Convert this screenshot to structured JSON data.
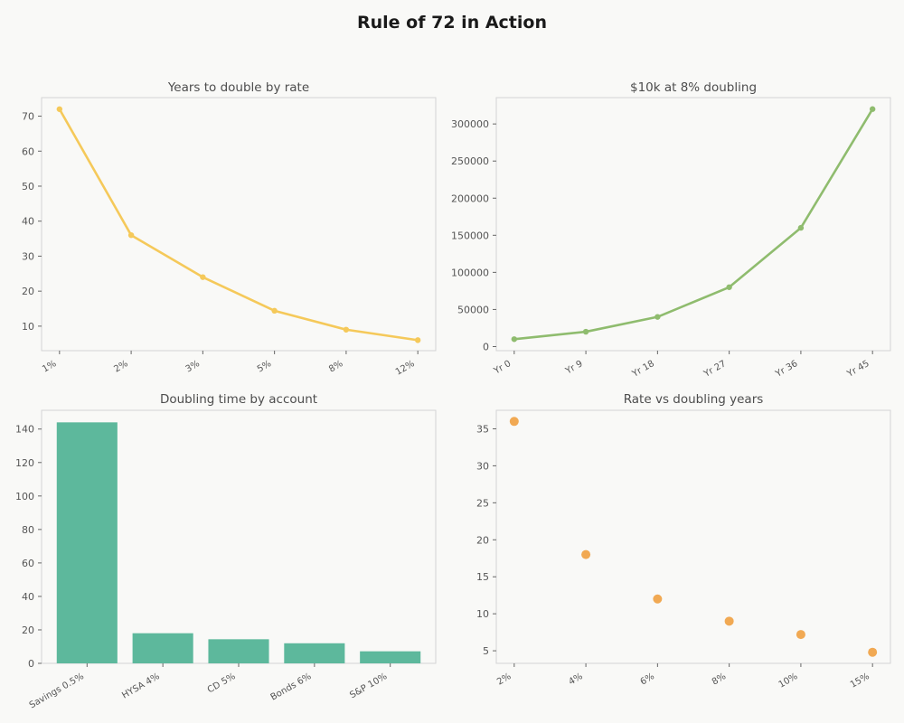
{
  "figure": {
    "title": "Rule of 72 in Action"
  },
  "chart_data": [
    {
      "type": "line",
      "title": "Years to double by rate",
      "xlabel": "",
      "ylabel": "",
      "categories": [
        "1%",
        "2%",
        "3%",
        "5%",
        "8%",
        "12%"
      ],
      "values": [
        72,
        36,
        24,
        14.4,
        9,
        6
      ],
      "ylim": [
        3,
        75.3
      ],
      "yticks": [
        10,
        20,
        30,
        40,
        50,
        60,
        70
      ],
      "color": "#f5c95a",
      "grid": false
    },
    {
      "type": "line",
      "title": "$10k at 8% doubling",
      "xlabel": "",
      "ylabel": "",
      "categories": [
        "Yr 0",
        "Yr 9",
        "Yr 18",
        "Yr 27",
        "Yr 36",
        "Yr 45"
      ],
      "values": [
        10000,
        20000,
        40000,
        80000,
        160000,
        320000
      ],
      "ylim": [
        -5500,
        335500
      ],
      "yticks": [
        0,
        50000,
        100000,
        150000,
        200000,
        250000,
        300000
      ],
      "color": "#8fbc6e",
      "grid": false
    },
    {
      "type": "bar",
      "title": "Doubling time by account",
      "xlabel": "",
      "ylabel": "",
      "categories": [
        "Savings 0.5%",
        "HYSA 4%",
        "CD 5%",
        "Bonds 6%",
        "S&P 10%"
      ],
      "values": [
        144,
        18,
        14.4,
        12,
        7.2
      ],
      "ylim": [
        0,
        151.2
      ],
      "yticks": [
        0,
        20,
        40,
        60,
        80,
        100,
        120,
        140
      ],
      "color": "#5db89c",
      "grid": false
    },
    {
      "type": "scatter",
      "title": "Rate vs doubling years",
      "xlabel": "",
      "ylabel": "",
      "categories": [
        "2%",
        "4%",
        "6%",
        "8%",
        "10%",
        "15%"
      ],
      "values": [
        36,
        18,
        12,
        9,
        7.2,
        4.8
      ],
      "ylim": [
        3.3,
        37.5
      ],
      "yticks": [
        5,
        10,
        15,
        20,
        25,
        30,
        35
      ],
      "color": "#f0a040",
      "grid": false
    }
  ]
}
